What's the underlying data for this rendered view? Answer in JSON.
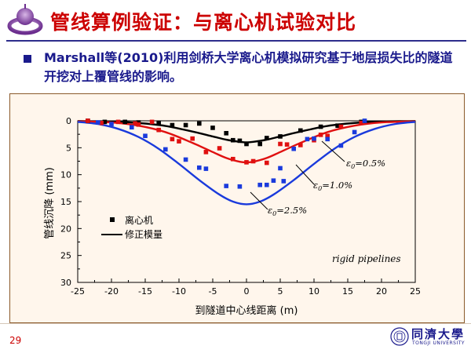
{
  "slide": {
    "title": "管线算例验证：与离心机试验对比",
    "bullet": "Marshall等(2010)利用剑桥大学离心机模拟研究基于地层损失比的隧道开挖对上覆管线的影响。",
    "page_number": "29",
    "university_cn": "同濟大學",
    "university_en": "TONGJI UNIVERSITY",
    "colors": {
      "title": "#cc0000",
      "text": "#1a1a8c",
      "chart_bg": "#fff6ec"
    }
  },
  "chart_data": {
    "type": "scatter",
    "xlabel": "到隧道中心线距离 (m)",
    "ylabel": "管线沉降 (mm)",
    "xlim": [
      -25,
      25
    ],
    "ylim": [
      0,
      30
    ],
    "xticks": [
      "-25",
      "-20",
      "-15",
      "-10",
      "-5",
      "0",
      "5",
      "10",
      "15",
      "20",
      "25"
    ],
    "yticks": [
      "0",
      "5",
      "10",
      "15",
      "20",
      "25",
      "30"
    ],
    "y_inverted": true,
    "annotation": "rigid pipelines",
    "legend": [
      {
        "key": "centrifuge",
        "label": "离心机"
      },
      {
        "key": "model",
        "label": "修正模量"
      }
    ],
    "series": [
      {
        "name": "ε0=0.5%",
        "label_prefix": "ε",
        "label_sub": "0",
        "label_suffix": "=0.5%",
        "color": "#000000",
        "points": [
          [
            -23.5,
            0
          ],
          [
            -21,
            0.2
          ],
          [
            -18,
            0.2
          ],
          [
            -16,
            0.3
          ],
          [
            -13,
            0.4
          ],
          [
            -11,
            0.8
          ],
          [
            -9,
            0.8
          ],
          [
            -7,
            0.5
          ],
          [
            -5,
            1.3
          ],
          [
            -3,
            2.3
          ],
          [
            -2,
            3.6
          ],
          [
            -1,
            3.7
          ],
          [
            0,
            4.3
          ],
          [
            2,
            4.3
          ],
          [
            3,
            3.2
          ],
          [
            5,
            2.9
          ],
          [
            8,
            1.8
          ],
          [
            11,
            1.1
          ],
          [
            13.5,
            0.9
          ],
          [
            17,
            0.2
          ]
        ],
        "curve": [
          [
            -25,
            0.05
          ],
          [
            -20,
            0.12
          ],
          [
            -16,
            0.4
          ],
          [
            -12,
            0.95
          ],
          [
            -8,
            2
          ],
          [
            -5,
            2.9
          ],
          [
            -3,
            3.5
          ],
          [
            -1,
            3.9
          ],
          [
            0,
            4
          ],
          [
            1,
            3.9
          ],
          [
            3,
            3.5
          ],
          [
            5,
            2.9
          ],
          [
            8,
            2
          ],
          [
            12,
            0.95
          ],
          [
            16,
            0.4
          ],
          [
            20,
            0.12
          ],
          [
            25,
            0.05
          ]
        ]
      },
      {
        "name": "ε0=1.0%",
        "label_prefix": "ε",
        "label_sub": "0",
        "label_suffix": "=1.0%",
        "color": "#e01010",
        "points": [
          [
            -23.5,
            0
          ],
          [
            -21.5,
            0.4
          ],
          [
            -19,
            0.2
          ],
          [
            -16.5,
            0.5
          ],
          [
            -16,
            0.7
          ],
          [
            -14,
            0.2
          ],
          [
            -13,
            1.7
          ],
          [
            -11,
            3.4
          ],
          [
            -10,
            3.8
          ],
          [
            -8,
            3.3
          ],
          [
            -6,
            5.8
          ],
          [
            -4,
            5.1
          ],
          [
            -2,
            7.1
          ],
          [
            0,
            7.7
          ],
          [
            1,
            7.5
          ],
          [
            3,
            7.8
          ],
          [
            5,
            4.3
          ],
          [
            6,
            4.4
          ],
          [
            8,
            4.5
          ],
          [
            10,
            3.6
          ],
          [
            11,
            2.6
          ],
          [
            12,
            2.8
          ],
          [
            14,
            1.1
          ],
          [
            17,
            0.4
          ]
        ],
        "curve": [
          [
            -25,
            0.1
          ],
          [
            -20,
            0.3
          ],
          [
            -16,
            0.9
          ],
          [
            -12,
            2.1
          ],
          [
            -8,
            4.1
          ],
          [
            -5,
            5.8
          ],
          [
            -3,
            6.9
          ],
          [
            -1,
            7.6
          ],
          [
            0,
            7.7
          ],
          [
            1,
            7.6
          ],
          [
            3,
            6.9
          ],
          [
            5,
            5.8
          ],
          [
            8,
            4.1
          ],
          [
            12,
            2.1
          ],
          [
            16,
            0.9
          ],
          [
            20,
            0.3
          ],
          [
            25,
            0.1
          ]
        ]
      },
      {
        "name": "ε0=2.5%",
        "label_prefix": "ε",
        "label_sub": "0",
        "label_suffix": "=2.5%",
        "color": "#1a3adc",
        "points": [
          [
            -22,
            0.3
          ],
          [
            -20,
            0.6
          ],
          [
            -17,
            1.2
          ],
          [
            -15,
            2.8
          ],
          [
            -12,
            5.3
          ],
          [
            -9,
            7.2
          ],
          [
            -7,
            8.7
          ],
          [
            -6,
            8.9
          ],
          [
            -3,
            12.1
          ],
          [
            -1,
            12.2
          ],
          [
            2,
            11.9
          ],
          [
            3,
            11.9
          ],
          [
            4,
            11.1
          ],
          [
            5,
            8.8
          ],
          [
            5.5,
            11.2
          ],
          [
            7,
            5.2
          ],
          [
            9,
            3.4
          ],
          [
            10,
            3.3
          ],
          [
            12,
            3.4
          ],
          [
            14,
            4.6
          ],
          [
            16,
            2.1
          ],
          [
            17.5,
            0
          ]
        ],
        "curve": [
          [
            -25,
            0.2
          ],
          [
            -22,
            0.6
          ],
          [
            -19,
            1.5
          ],
          [
            -16,
            3
          ],
          [
            -13,
            5.2
          ],
          [
            -10,
            8
          ],
          [
            -7,
            11
          ],
          [
            -4,
            13.7
          ],
          [
            -2,
            15
          ],
          [
            0,
            15.5
          ],
          [
            2,
            15
          ],
          [
            4,
            13.7
          ],
          [
            7,
            11
          ],
          [
            10,
            8
          ],
          [
            13,
            5.2
          ],
          [
            16,
            3
          ],
          [
            19,
            1.5
          ],
          [
            22,
            0.6
          ],
          [
            25,
            0.2
          ]
        ]
      }
    ]
  }
}
